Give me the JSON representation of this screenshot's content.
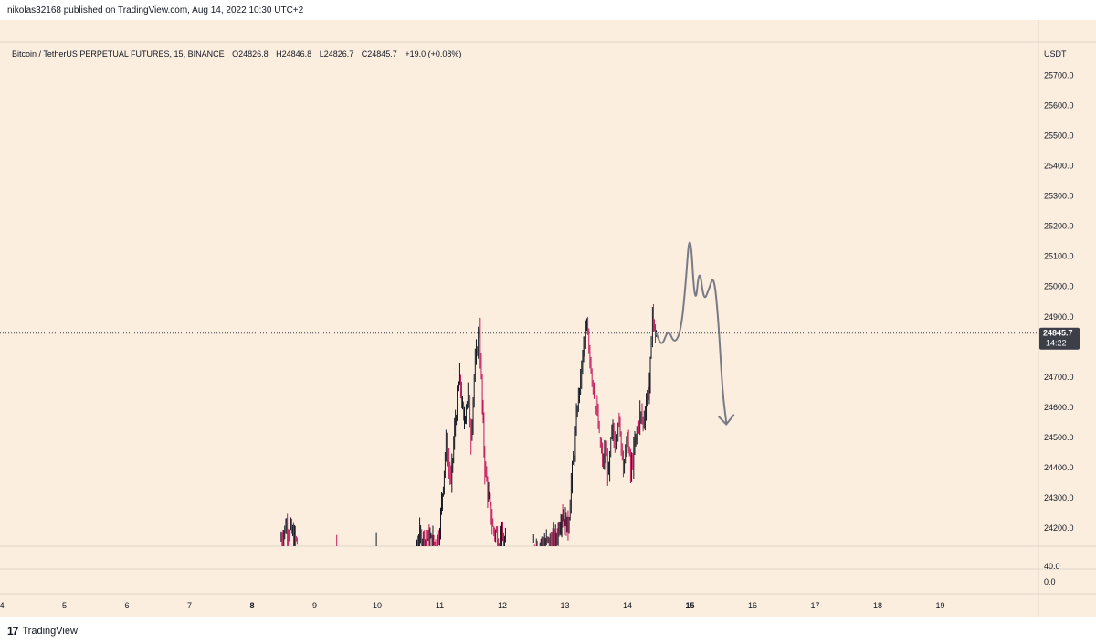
{
  "header": {
    "published_text": "nikolas32168 published on TradingView.com, Aug 14, 2022 10:30 UTC+2"
  },
  "legend": {
    "symbol": "Bitcoin / TetherUS PERPETUAL FUTURES, 15, BINANCE",
    "open": "O24826.8",
    "high": "H24846.8",
    "low": "L24826.7",
    "close": "C24845.7",
    "change": "+19.0 (+0.08%)"
  },
  "price_scale": {
    "currency": "USDT",
    "current_price": "24845.7",
    "countdown": "14:22"
  },
  "volume_scale": {
    "labels": [
      "40.0",
      "0.0"
    ]
  },
  "footer": {
    "brand": "TradingView"
  },
  "colors": {
    "background": "#fbeedf",
    "up_candle": "#131722",
    "down_candle": "#c2185b",
    "drawing": "#787b86",
    "price_label_bg": "#3c3f48"
  },
  "chart_data": {
    "type": "candlestick",
    "interval": "15",
    "x_ticks": [
      "4",
      "5",
      "6",
      "7",
      "8",
      "9",
      "10",
      "11",
      "12",
      "13",
      "14",
      "15",
      "16",
      "17",
      "18",
      "19"
    ],
    "y_ticks": [
      24200,
      24300,
      24400,
      24500,
      24600,
      24700,
      24900,
      25000,
      25100,
      25200,
      25300,
      25400,
      25500,
      25600,
      25700
    ],
    "y_tick_labels": [
      "24200.0",
      "24300.0",
      "24400.0",
      "24500.0",
      "24600.0",
      "24700.0",
      "24900.0",
      "25000.0",
      "25100.0",
      "25200.0",
      "25300.0",
      "25400.0",
      "25500.0",
      "25600.0",
      "25700.0"
    ],
    "ylim": [
      24140,
      25810
    ],
    "xlim": [
      3.97,
      20.57
    ],
    "current_price": 24845.7,
    "price_path": [
      [
        8.45,
        24160
      ],
      [
        8.55,
        24210
      ],
      [
        8.65,
        24180
      ],
      [
        8.72,
        24150
      ],
      [
        10.62,
        24140
      ],
      [
        10.68,
        24170
      ],
      [
        10.95,
        24150
      ],
      [
        11.0,
        24200
      ],
      [
        11.1,
        24480
      ],
      [
        11.18,
        24350
      ],
      [
        11.25,
        24560
      ],
      [
        11.32,
        24700
      ],
      [
        11.38,
        24550
      ],
      [
        11.45,
        24650
      ],
      [
        11.5,
        24500
      ],
      [
        11.55,
        24700
      ],
      [
        11.6,
        24800
      ],
      [
        11.63,
        24860
      ],
      [
        11.68,
        24600
      ],
      [
        11.72,
        24400
      ],
      [
        11.78,
        24300
      ],
      [
        11.85,
        24200
      ],
      [
        11.95,
        24160
      ],
      [
        12.05,
        24150
      ],
      [
        12.5,
        24140
      ],
      [
        12.85,
        24160
      ],
      [
        12.95,
        24250
      ],
      [
        13.05,
        24200
      ],
      [
        13.1,
        24350
      ],
      [
        13.15,
        24450
      ],
      [
        13.2,
        24600
      ],
      [
        13.25,
        24700
      ],
      [
        13.3,
        24800
      ],
      [
        13.35,
        24860
      ],
      [
        13.4,
        24760
      ],
      [
        13.45,
        24680
      ],
      [
        13.5,
        24600
      ],
      [
        13.55,
        24500
      ],
      [
        13.6,
        24420
      ],
      [
        13.65,
        24450
      ],
      [
        13.7,
        24380
      ],
      [
        13.75,
        24520
      ],
      [
        13.8,
        24480
      ],
      [
        13.85,
        24560
      ],
      [
        13.9,
        24470
      ],
      [
        13.95,
        24420
      ],
      [
        14.0,
        24500
      ],
      [
        14.05,
        24380
      ],
      [
        14.1,
        24450
      ],
      [
        14.15,
        24520
      ],
      [
        14.2,
        24580
      ],
      [
        14.25,
        24550
      ],
      [
        14.3,
        24620
      ],
      [
        14.35,
        24680
      ],
      [
        14.38,
        24800
      ],
      [
        14.4,
        24930
      ],
      [
        14.43,
        24850
      ],
      [
        14.46,
        24845.7
      ]
    ],
    "projection_path": [
      [
        14.46,
        24845
      ],
      [
        14.55,
        24800
      ],
      [
        14.65,
        24860
      ],
      [
        14.75,
        24810
      ],
      [
        14.85,
        24850
      ],
      [
        14.92,
        24980
      ],
      [
        15.0,
        25210
      ],
      [
        15.08,
        24920
      ],
      [
        15.15,
        25070
      ],
      [
        15.22,
        24950
      ],
      [
        15.3,
        24990
      ],
      [
        15.38,
        25040
      ],
      [
        15.45,
        24900
      ],
      [
        15.52,
        24650
      ],
      [
        15.58,
        24550
      ]
    ]
  }
}
